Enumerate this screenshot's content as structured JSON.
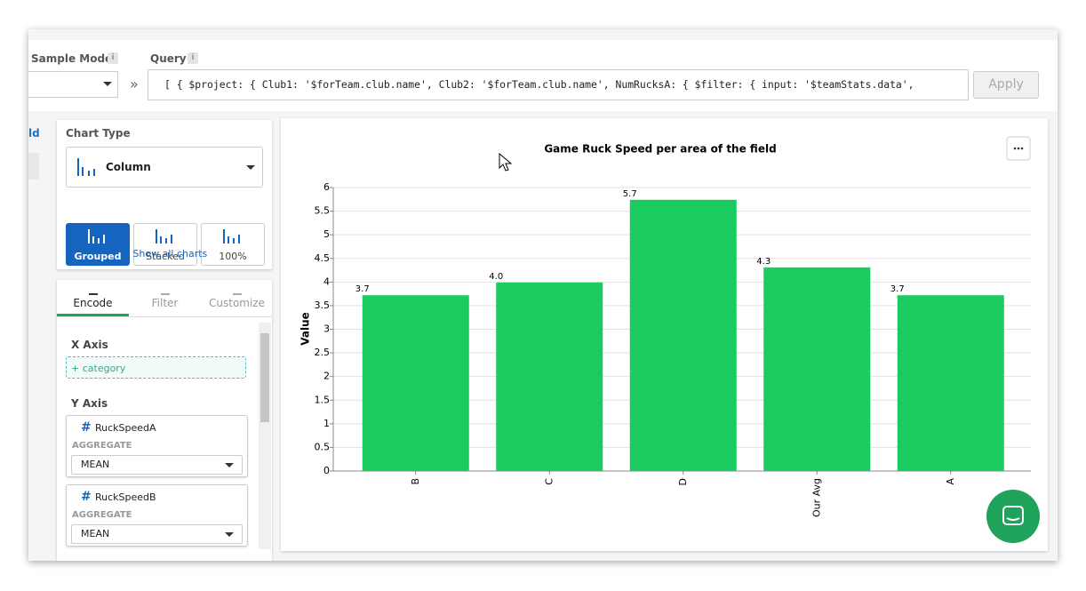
{
  "toolbar": {
    "sample_mode_label": "Sample Mode",
    "query_label": "Query",
    "info_icon": "i",
    "separator": "»",
    "query": "[ { $project: { Club1: '$forTeam.club.name', Club2: '$forTeam.club.name', NumRucksA: { $filter: { input: '$teamStats.data',",
    "apply": "Apply"
  },
  "sidebar": {
    "partial_label": "ld"
  },
  "chart_type": {
    "title": "Chart Type",
    "selected": "Column",
    "options": [
      "Grouped",
      "Stacked",
      "100%"
    ],
    "show_all": "Show all charts"
  },
  "tabs": [
    "Encode",
    "Filter",
    "Customize"
  ],
  "encode": {
    "x_axis": "X Axis",
    "x_field": "+ category",
    "y_axis": "Y Axis",
    "fields": [
      {
        "icon": "#",
        "name": "RuckSpeedA",
        "aggregate_label": "AGGREGATE",
        "aggregate": "MEAN"
      },
      {
        "icon": "#",
        "name": "RuckSpeedB",
        "aggregate_label": "AGGREGATE",
        "aggregate": "MEAN"
      }
    ]
  },
  "chart_data": {
    "type": "bar",
    "title": "Game Ruck Speed per area of the field",
    "y_label": "Value",
    "categories": [
      "B",
      "C",
      "D",
      "Our Avg",
      "A"
    ],
    "values": [
      3.72,
      3.99,
      5.74,
      4.31,
      3.72
    ],
    "value_labels": [
      "3.7",
      "4.0",
      "5.7",
      "4.3",
      "3.7"
    ],
    "color": "#1ccb5f",
    "ylim": [
      0,
      6
    ],
    "yticks": [
      0,
      0.5,
      1,
      1.5,
      2,
      2.5,
      3,
      3.5,
      4,
      4.5,
      5,
      5.5,
      6
    ],
    "grid": true
  }
}
